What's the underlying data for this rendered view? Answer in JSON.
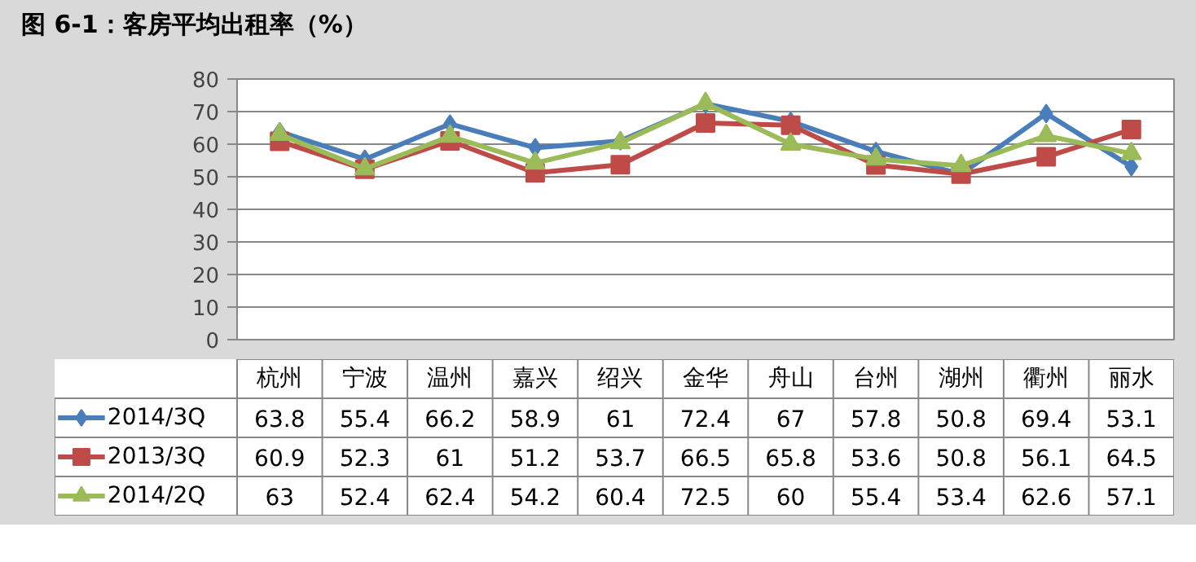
{
  "chart_data": {
    "type": "line",
    "title": "图 6-1：客房平均出租率（%）",
    "categories": [
      "杭州",
      "宁波",
      "温州",
      "嘉兴",
      "绍兴",
      "金华",
      "舟山",
      "台州",
      "湖州",
      "衢州",
      "丽水"
    ],
    "series": [
      {
        "name": "2014/3Q",
        "color": "#4a7ebb",
        "marker": "diamond",
        "values": [
          63.8,
          55.4,
          66.2,
          58.9,
          61,
          72.4,
          67,
          57.8,
          50.8,
          69.4,
          53.1
        ]
      },
      {
        "name": "2013/3Q",
        "color": "#be4b48",
        "marker": "square",
        "values": [
          60.9,
          52.3,
          61,
          51.2,
          53.7,
          66.5,
          65.8,
          53.6,
          50.8,
          56.1,
          64.5
        ]
      },
      {
        "name": "2014/2Q",
        "color": "#9bbb59",
        "marker": "triangle",
        "values": [
          63,
          52.4,
          62.4,
          54.2,
          60.4,
          72.5,
          60,
          55.4,
          53.4,
          62.6,
          57.1
        ]
      }
    ],
    "ylim": [
      0,
      80
    ],
    "yticks": [
      0,
      10,
      20,
      30,
      40,
      50,
      60,
      70,
      80
    ],
    "grid": "y",
    "legend": "bottom left",
    "data_labels": true
  }
}
